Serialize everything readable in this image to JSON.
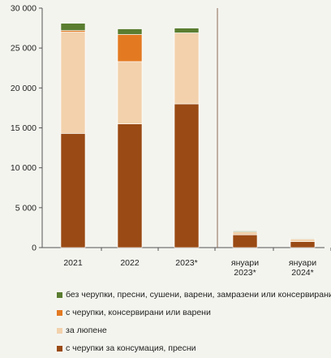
{
  "chart_data": {
    "type": "bar",
    "stacked": true,
    "categories": [
      "2021",
      "2022",
      "2023*",
      "януари 2023*",
      "януари 2024*"
    ],
    "category_lines": [
      [
        "2021"
      ],
      [
        "2022"
      ],
      [
        "2023*"
      ],
      [
        "януари",
        "2023*"
      ],
      [
        "януари",
        "2024*"
      ]
    ],
    "ylim": [
      0,
      30000
    ],
    "yticks": [
      0,
      5000,
      10000,
      15000,
      20000,
      25000,
      30000
    ],
    "ytick_labels": [
      "0",
      "5 000",
      "10 000",
      "15 000",
      "20 000",
      "25 000",
      "30 000"
    ],
    "separator_after_index": 2,
    "series": [
      {
        "name": "с черупки за консумация, пресни",
        "color": "#9a4a14",
        "values": [
          14300,
          15500,
          18000,
          1600,
          750
        ]
      },
      {
        "name": "за люпене",
        "color": "#f2d1ac",
        "values": [
          12700,
          7800,
          8900,
          380,
          330
        ]
      },
      {
        "name": "с черупки, консервирани или варени",
        "color": "#e37a22",
        "values": [
          200,
          3400,
          0,
          0,
          0
        ]
      },
      {
        "name": "без черупки, пресни, сушени, варени, замразени или консервирани",
        "color": "#5a7d30",
        "values": [
          900,
          700,
          600,
          100,
          80
        ]
      }
    ],
    "legend_order": [
      3,
      2,
      1,
      0
    ]
  }
}
